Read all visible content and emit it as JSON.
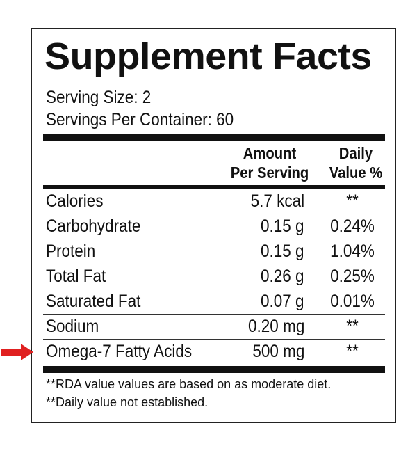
{
  "title": "Supplement Facts",
  "serving_size": "Serving Size: 2",
  "servings_per_container": "Servings Per Container: 60",
  "header": {
    "amount_line1": "Amount",
    "amount_line2": "Per Serving",
    "daily_line1": "Daily",
    "daily_line2": "Value %"
  },
  "rows": [
    {
      "name": "Calories",
      "amount": "5.7 kcal",
      "daily": "**"
    },
    {
      "name": "Carbohydrate",
      "amount": "0.15 g",
      "daily": "0.24%"
    },
    {
      "name": "Protein",
      "amount": "0.15 g",
      "daily": "1.04%"
    },
    {
      "name": "Total Fat",
      "amount": "0.26 g",
      "daily": "0.25%"
    },
    {
      "name": "Saturated Fat",
      "amount": "0.07 g",
      "daily": "0.01%"
    },
    {
      "name": "Sodium",
      "amount": "0.20 mg",
      "daily": "**"
    },
    {
      "name": "Omega-7 Fatty Acids",
      "amount": "500 mg",
      "daily": "**"
    }
  ],
  "footnotes": [
    "**RDA value values are based on as moderate diet.",
    "**Daily value not established."
  ],
  "highlight": {
    "icon": "arrow-right-icon",
    "color": "#e02020",
    "row": "Omega-7 Fatty Acids"
  }
}
